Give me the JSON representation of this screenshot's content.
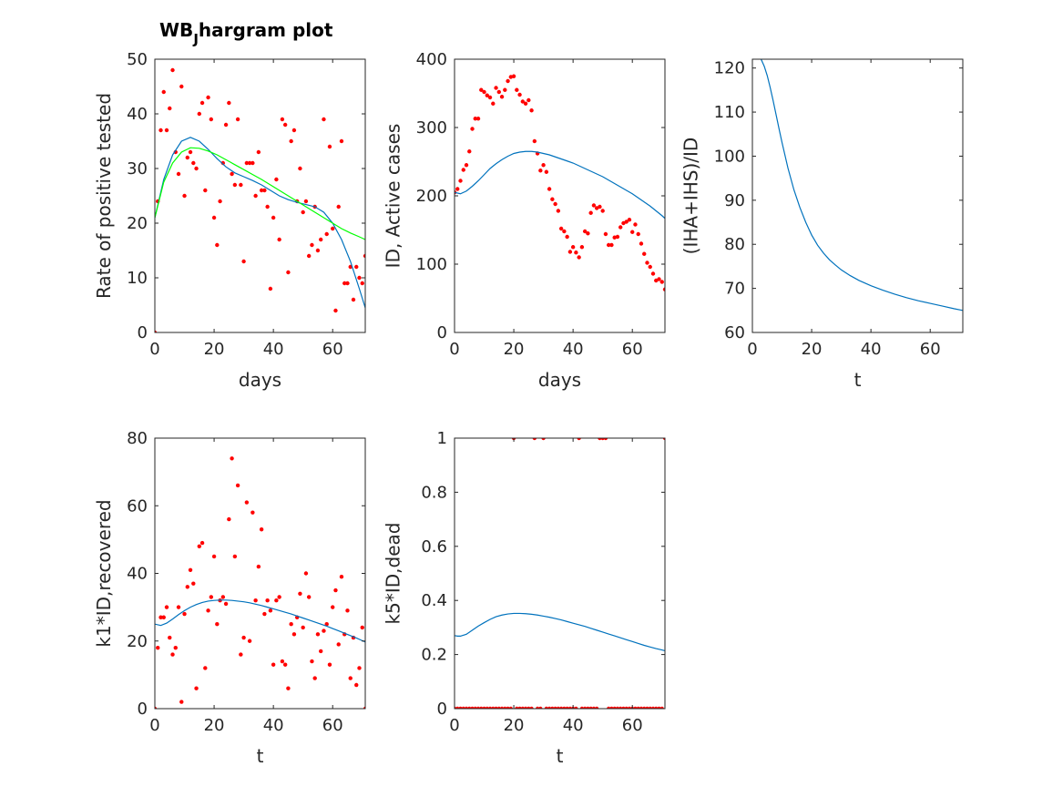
{
  "figure": {
    "title_main": "WB",
    "title_sub": "J",
    "title_rest": "hargram plot"
  },
  "colors": {
    "fit": "#0072bd",
    "fit2": "#00ff00",
    "points": "#ff0000",
    "axis": "#262626"
  },
  "chart_data": [
    {
      "type": "scatter",
      "title": "WB_Jhargram plot",
      "xlabel": "days",
      "ylabel": "Rate of positive tested",
      "xlim": [
        0,
        71
      ],
      "ylim": [
        0,
        50
      ],
      "xticks": [
        0,
        20,
        40,
        60
      ],
      "yticks": [
        0,
        10,
        20,
        30,
        40,
        50
      ],
      "grid": false,
      "series": [
        {
          "kind": "points",
          "color": "#ff0000",
          "x": [
            0,
            1,
            2,
            3,
            4,
            5,
            6,
            7,
            8,
            9,
            10,
            11,
            12,
            13,
            14,
            15,
            16,
            17,
            18,
            19,
            20,
            21,
            22,
            23,
            24,
            25,
            26,
            27,
            28,
            29,
            30,
            31,
            32,
            33,
            34,
            35,
            36,
            37,
            38,
            39,
            40,
            41,
            42,
            43,
            44,
            45,
            46,
            47,
            48,
            49,
            50,
            51,
            52,
            53,
            54,
            55,
            56,
            57,
            58,
            59,
            60,
            61,
            62,
            63,
            64,
            65,
            66,
            67,
            68,
            69,
            70,
            71
          ],
          "y": [
            0,
            24,
            37,
            44,
            37,
            41,
            48,
            33,
            29,
            45,
            25,
            32,
            33,
            31,
            30,
            40,
            42,
            26,
            43,
            39,
            21,
            16,
            24,
            31,
            38,
            42,
            29,
            27,
            39,
            27,
            13,
            31,
            31,
            31,
            25,
            33,
            26,
            26,
            23,
            8,
            21,
            28,
            17,
            39,
            38,
            11,
            35,
            37,
            24,
            30,
            22,
            24,
            14,
            16,
            23,
            15,
            17,
            39,
            18,
            34,
            19,
            4,
            23,
            35,
            9,
            9,
            12,
            6,
            12,
            10,
            9,
            14
          ]
        },
        {
          "kind": "line",
          "color": "#0072bd",
          "x": [
            0,
            3,
            6,
            9,
            12,
            15,
            18,
            21,
            24,
            27,
            30,
            33,
            36,
            39,
            42,
            45,
            48,
            51,
            54,
            57,
            60,
            63,
            66,
            69,
            71
          ],
          "y": [
            21,
            28,
            32.5,
            35,
            35.7,
            35,
            33.5,
            31.8,
            30.3,
            29.2,
            28.5,
            27.8,
            27,
            26,
            25,
            24.3,
            23.8,
            23.4,
            23,
            22,
            20,
            17,
            13,
            8,
            4.5
          ]
        },
        {
          "kind": "line",
          "color": "#00ff00",
          "x": [
            0,
            3,
            6,
            9,
            12,
            15,
            18,
            21,
            24,
            27,
            30,
            33,
            36,
            39,
            42,
            45,
            48,
            51,
            54,
            57,
            60,
            63,
            66,
            69,
            71
          ],
          "y": [
            21,
            27.5,
            31,
            33,
            33.8,
            33.7,
            33.2,
            32.5,
            31.6,
            30.7,
            29.8,
            28.9,
            28,
            27,
            26,
            25,
            24,
            23,
            22,
            21,
            20,
            19,
            18.2,
            17.5,
            17
          ]
        }
      ]
    },
    {
      "type": "scatter",
      "xlabel": "days",
      "ylabel": "ID, Active cases",
      "xlim": [
        0,
        71
      ],
      "ylim": [
        0,
        400
      ],
      "xticks": [
        0,
        20,
        40,
        60
      ],
      "yticks": [
        0,
        100,
        200,
        300,
        400
      ],
      "grid": false,
      "series": [
        {
          "kind": "points",
          "color": "#ff0000",
          "x": [
            0,
            1,
            2,
            3,
            4,
            5,
            6,
            7,
            8,
            9,
            10,
            11,
            12,
            13,
            14,
            15,
            16,
            17,
            18,
            19,
            20,
            21,
            22,
            23,
            24,
            25,
            26,
            27,
            28,
            29,
            30,
            31,
            32,
            33,
            34,
            35,
            36,
            37,
            38,
            39,
            40,
            41,
            42,
            43,
            44,
            45,
            46,
            47,
            48,
            49,
            50,
            51,
            52,
            53,
            54,
            55,
            56,
            57,
            58,
            59,
            60,
            61,
            62,
            63,
            64,
            65,
            66,
            67,
            68,
            69,
            70,
            71
          ],
          "y": [
            205,
            210,
            222,
            238,
            245,
            265,
            298,
            313,
            313,
            355,
            352,
            347,
            344,
            335,
            358,
            352,
            345,
            355,
            368,
            374,
            375,
            355,
            348,
            338,
            335,
            340,
            325,
            280,
            262,
            237,
            245,
            235,
            210,
            195,
            188,
            178,
            152,
            148,
            140,
            118,
            125,
            117,
            110,
            125,
            148,
            145,
            175,
            186,
            182,
            184,
            178,
            144,
            128,
            128,
            139,
            140,
            154,
            160,
            162,
            165,
            147,
            158,
            144,
            130,
            115,
            102,
            96,
            86,
            76,
            78,
            74,
            63
          ]
        },
        {
          "kind": "line",
          "color": "#0072bd",
          "x": [
            0,
            2,
            4,
            6,
            8,
            10,
            12,
            14,
            16,
            18,
            20,
            22,
            24,
            26,
            28,
            30,
            32,
            34,
            36,
            38,
            40,
            42,
            44,
            46,
            48,
            50,
            52,
            54,
            56,
            58,
            60,
            62,
            64,
            66,
            68,
            70,
            71
          ],
          "y": [
            205,
            203,
            207,
            214,
            222,
            231,
            240,
            247,
            253,
            258,
            262,
            264,
            265,
            265,
            264,
            262,
            260,
            257,
            254,
            251,
            248,
            244,
            240,
            236,
            232,
            228,
            223,
            218,
            213,
            208,
            203,
            197,
            191,
            185,
            178,
            171,
            167
          ]
        }
      ]
    },
    {
      "type": "line",
      "xlabel": "t",
      "ylabel": "(IHA+IHS)/ID",
      "xlim": [
        0,
        71
      ],
      "ylim": [
        60,
        122
      ],
      "xticks": [
        0,
        20,
        40,
        60
      ],
      "yticks": [
        60,
        70,
        80,
        90,
        100,
        110,
        120
      ],
      "grid": false,
      "series": [
        {
          "kind": "line",
          "color": "#0072bd",
          "x": [
            0,
            1,
            2,
            3,
            4,
            5,
            6,
            7,
            8,
            9,
            10,
            12,
            14,
            16,
            18,
            20,
            22,
            24,
            26,
            28,
            30,
            33,
            36,
            40,
            44,
            48,
            52,
            56,
            60,
            64,
            68,
            71
          ],
          "y": [
            122,
            122.5,
            122.6,
            121.9,
            120.4,
            118.3,
            115.6,
            112.6,
            109.4,
            106.2,
            103.1,
            97.3,
            92.4,
            88.4,
            85,
            82.1,
            79.8,
            78,
            76.5,
            75.3,
            74.2,
            72.9,
            71.8,
            70.6,
            69.6,
            68.7,
            67.9,
            67.2,
            66.6,
            66,
            65.4,
            65
          ]
        }
      ]
    },
    {
      "type": "scatter",
      "xlabel": "t",
      "ylabel": "k1*ID,recovered",
      "xlim": [
        0,
        71
      ],
      "ylim": [
        0,
        80
      ],
      "xticks": [
        0,
        20,
        40,
        60
      ],
      "yticks": [
        0,
        20,
        40,
        60,
        80
      ],
      "grid": false,
      "series": [
        {
          "kind": "points",
          "color": "#ff0000",
          "x": [
            0,
            1,
            2,
            3,
            4,
            5,
            6,
            7,
            8,
            9,
            10,
            11,
            12,
            13,
            14,
            15,
            16,
            17,
            18,
            19,
            20,
            21,
            22,
            23,
            24,
            25,
            26,
            27,
            28,
            29,
            30,
            31,
            32,
            33,
            34,
            35,
            36,
            37,
            38,
            39,
            40,
            41,
            42,
            43,
            44,
            45,
            46,
            47,
            48,
            49,
            50,
            51,
            52,
            53,
            54,
            55,
            56,
            57,
            58,
            59,
            60,
            61,
            62,
            63,
            64,
            65,
            66,
            67,
            68,
            69,
            70,
            71
          ],
          "y": [
            0,
            18,
            27,
            27,
            30,
            21,
            16,
            18,
            30,
            2,
            28,
            36,
            41,
            37,
            6,
            48,
            49,
            12,
            29,
            33,
            45,
            25,
            32,
            33,
            31,
            56,
            74,
            45,
            66,
            16,
            21,
            61,
            20,
            58,
            32,
            42,
            53,
            28,
            32,
            29,
            13,
            32,
            33,
            14,
            13,
            6,
            25,
            22,
            27,
            34,
            24,
            40,
            33,
            14,
            9,
            22,
            17,
            23,
            25,
            13,
            30,
            35,
            19,
            39,
            22,
            29,
            9,
            21,
            7,
            12,
            24,
            0
          ]
        },
        {
          "kind": "line",
          "color": "#0072bd",
          "x": [
            0,
            2,
            4,
            6,
            8,
            10,
            12,
            14,
            16,
            18,
            20,
            22,
            24,
            26,
            28,
            30,
            32,
            34,
            36,
            38,
            40,
            42,
            44,
            46,
            48,
            50,
            52,
            54,
            56,
            58,
            60,
            62,
            64,
            66,
            68,
            70,
            71
          ],
          "y": [
            25,
            24.6,
            25.3,
            26.5,
            27.8,
            29,
            30,
            30.8,
            31.4,
            31.8,
            32,
            32.1,
            32.1,
            32,
            31.8,
            31.6,
            31.3,
            30.9,
            30.5,
            30,
            29.5,
            29,
            28.5,
            28,
            27.4,
            26.8,
            26.2,
            25.6,
            25,
            24.4,
            23.7,
            23,
            22.3,
            21.6,
            20.9,
            20.1,
            19.7
          ]
        }
      ]
    },
    {
      "type": "scatter",
      "xlabel": "t",
      "ylabel": "k5*ID,dead",
      "xlim": [
        0,
        71
      ],
      "ylim": [
        0,
        1
      ],
      "xticks": [
        0,
        20,
        40,
        60
      ],
      "yticks": [
        0,
        0.2,
        0.4,
        0.6,
        0.8,
        1
      ],
      "grid": false,
      "series": [
        {
          "kind": "points",
          "color": "#ff0000",
          "x": [
            0,
            1,
            2,
            3,
            4,
            5,
            6,
            7,
            8,
            9,
            10,
            11,
            12,
            13,
            14,
            15,
            16,
            17,
            18,
            19,
            20,
            21,
            22,
            23,
            24,
            25,
            26,
            27,
            28,
            29,
            30,
            31,
            32,
            33,
            34,
            35,
            36,
            37,
            38,
            39,
            40,
            41,
            42,
            43,
            44,
            45,
            46,
            47,
            48,
            49,
            50,
            51,
            52,
            53,
            54,
            55,
            56,
            57,
            58,
            59,
            60,
            61,
            62,
            63,
            64,
            65,
            66,
            67,
            68,
            69,
            70,
            71
          ],
          "y": [
            0,
            0,
            0,
            0,
            0,
            0,
            0,
            0,
            0,
            0,
            0,
            0,
            0,
            0,
            0,
            0,
            0,
            0,
            0,
            0,
            1,
            0,
            0,
            0,
            0,
            0,
            0,
            1,
            0,
            0,
            1,
            0,
            0,
            0,
            0,
            0,
            0,
            0,
            0,
            0,
            0,
            0,
            1,
            0,
            0,
            0,
            0,
            0,
            0,
            1,
            1,
            1,
            0,
            0,
            0,
            0,
            0,
            0,
            0,
            0,
            0,
            0,
            0,
            0,
            0,
            0,
            0,
            0,
            0,
            0,
            0,
            1
          ]
        },
        {
          "kind": "line",
          "color": "#0072bd",
          "x": [
            0,
            1,
            2,
            4,
            6,
            8,
            10,
            12,
            14,
            16,
            18,
            20,
            22,
            24,
            26,
            28,
            30,
            32,
            34,
            36,
            38,
            40,
            42,
            44,
            46,
            48,
            50,
            52,
            54,
            56,
            58,
            60,
            62,
            64,
            66,
            68,
            70,
            71
          ],
          "y": [
            0.27,
            0.268,
            0.268,
            0.275,
            0.29,
            0.305,
            0.318,
            0.33,
            0.34,
            0.346,
            0.35,
            0.352,
            0.352,
            0.351,
            0.349,
            0.346,
            0.342,
            0.338,
            0.333,
            0.328,
            0.322,
            0.316,
            0.31,
            0.304,
            0.297,
            0.29,
            0.283,
            0.276,
            0.269,
            0.262,
            0.255,
            0.248,
            0.241,
            0.234,
            0.228,
            0.222,
            0.217,
            0.214
          ]
        }
      ]
    }
  ]
}
